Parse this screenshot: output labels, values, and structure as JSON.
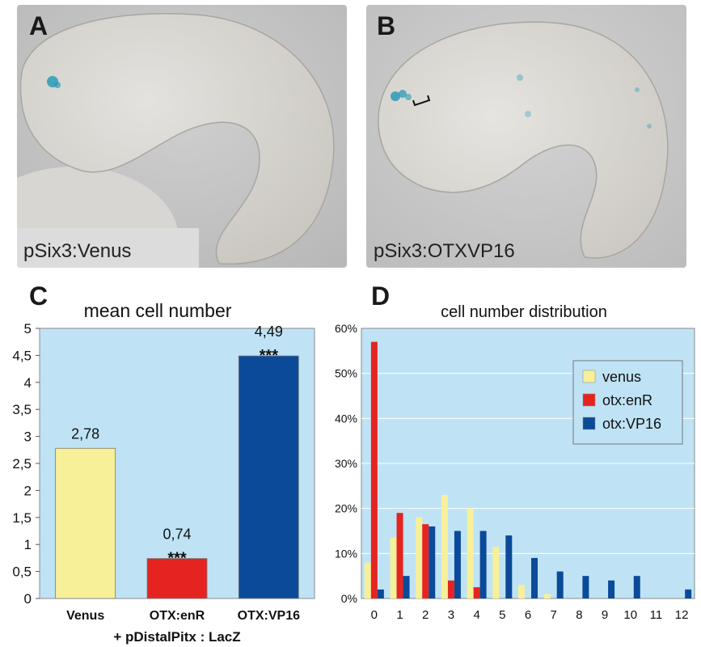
{
  "panels": {
    "a": {
      "letter": "A",
      "caption": "pSix3:Venus"
    },
    "b": {
      "letter": "B",
      "caption": "pSix3:OTXVP16"
    },
    "c": {
      "letter": "C"
    },
    "d": {
      "letter": "D"
    }
  },
  "colors": {
    "plot_bg": "#bfe3f5",
    "venus": "#f7f099",
    "otx_enr": "#e52421",
    "otx_vp16": "#0b4a99",
    "grid": "#ffffff"
  },
  "chart_data": [
    {
      "id": "C",
      "type": "bar",
      "title": "mean cell number",
      "categories": [
        "Venus",
        "OTX:enR",
        "OTX:VP16"
      ],
      "values": [
        2.78,
        0.74,
        4.49
      ],
      "value_labels": [
        "2,78",
        "0,74",
        "4,49"
      ],
      "significance": [
        "",
        "***",
        "***"
      ],
      "bar_colors": [
        "#f7f099",
        "#e52421",
        "#0b4a99"
      ],
      "ylim": [
        0,
        5
      ],
      "yticks": [
        0,
        0.5,
        1,
        1.5,
        2,
        2.5,
        3,
        3.5,
        4,
        4.5,
        5
      ],
      "ytick_labels": [
        "0",
        "0,5",
        "1",
        "1,5",
        "2",
        "2,5",
        "3",
        "3,5",
        "4",
        "4,5",
        "5"
      ],
      "xlabel": "+ pDistalPitx : LacZ",
      "grid": false
    },
    {
      "id": "D",
      "type": "bar",
      "title": "cell number distribution",
      "categories": [
        "0",
        "1",
        "2",
        "3",
        "4",
        "5",
        "6",
        "7",
        "8",
        "9",
        "10",
        "11",
        "12"
      ],
      "series": [
        {
          "name": "venus",
          "color": "#f7f099",
          "values": [
            8,
            13.5,
            18,
            23,
            20,
            11.5,
            3,
            1,
            0,
            0,
            0,
            0,
            0
          ]
        },
        {
          "name": "otx:enR",
          "color": "#e52421",
          "values": [
            57,
            19,
            16.5,
            4,
            2.5,
            0,
            0,
            0,
            0,
            0,
            0,
            0,
            0
          ]
        },
        {
          "name": "otx:VP16",
          "color": "#0b4a99",
          "values": [
            2,
            5,
            16,
            15,
            15,
            14,
            9,
            6,
            5,
            4,
            5,
            0,
            2
          ]
        }
      ],
      "ylim": [
        0,
        60
      ],
      "yticks": [
        0,
        10,
        20,
        30,
        40,
        50,
        60
      ],
      "ytick_labels": [
        "0%",
        "10%",
        "20%",
        "30%",
        "40%",
        "50%",
        "60%"
      ],
      "legend_position": "top-right",
      "grid": true
    }
  ]
}
